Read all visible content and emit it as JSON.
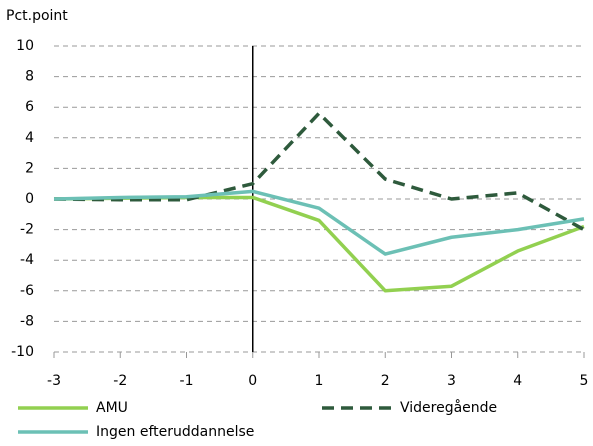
{
  "chart_data": {
    "type": "line",
    "y_axis_label": "Pct.point",
    "x": [
      -3,
      -2,
      -1,
      0,
      1,
      2,
      3,
      4,
      5
    ],
    "series": [
      {
        "name": "AMU",
        "color": "#92d050",
        "dash": false,
        "values": [
          0,
          0.05,
          0.1,
          0.1,
          -1.4,
          -6.0,
          -5.7,
          -3.4,
          -1.8
        ]
      },
      {
        "name": "Videregående",
        "color": "#2e5a3c",
        "dash": true,
        "values": [
          0,
          -0.05,
          -0.05,
          1.0,
          5.6,
          1.3,
          0.0,
          0.4,
          -2.0
        ]
      },
      {
        "name": "Ingen efteruddannelse",
        "color": "#6cc0b5",
        "dash": false,
        "values": [
          0,
          0.1,
          0.15,
          0.5,
          -0.6,
          -3.6,
          -2.5,
          -2.0,
          -1.3
        ]
      }
    ],
    "xlim": [
      -3,
      5
    ],
    "xticks": [
      -3,
      -2,
      -1,
      0,
      1,
      2,
      3,
      4,
      5
    ],
    "ylim": [
      -10,
      10
    ],
    "yticks": [
      -10,
      -8,
      -6,
      -4,
      -2,
      0,
      2,
      4,
      6,
      8,
      10
    ],
    "vline_x": 0,
    "grid": true
  }
}
